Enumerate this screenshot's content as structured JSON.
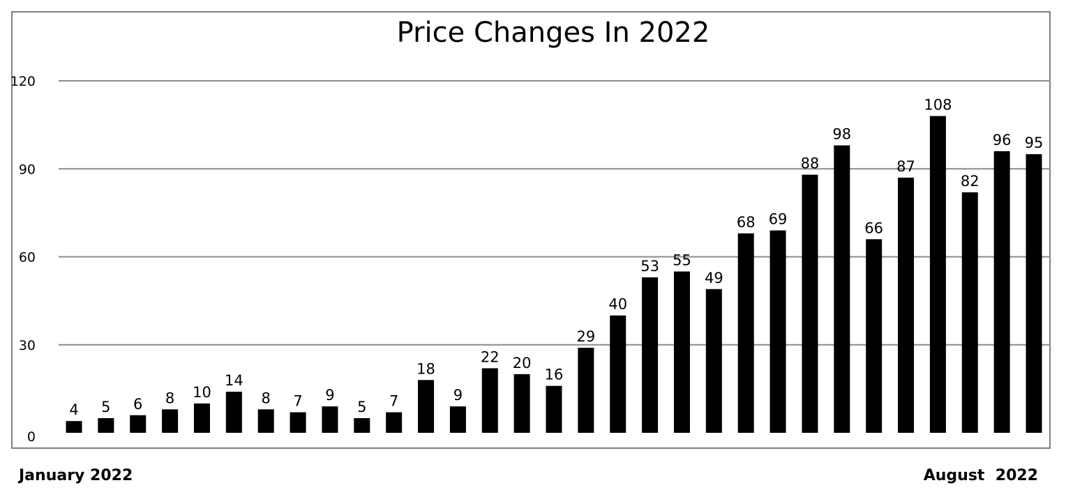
{
  "chart_data": {
    "type": "bar",
    "title": "Price Changes In 2022",
    "xlabel": "",
    "ylabel": "",
    "ylim": [
      0,
      120
    ],
    "yticks": [
      0,
      30,
      60,
      90,
      120
    ],
    "grid": true,
    "legend": "none",
    "bar_color": "#000000",
    "grid_color": "#8c8c8c",
    "values": [
      4,
      5,
      6,
      8,
      10,
      14,
      8,
      7,
      9,
      5,
      7,
      18,
      9,
      22,
      20,
      16,
      29,
      40,
      53,
      55,
      49,
      68,
      69,
      88,
      98,
      66,
      87,
      108,
      82,
      96,
      95
    ]
  },
  "footer": {
    "start_label": "January 2022",
    "end_label": "August  2022"
  }
}
